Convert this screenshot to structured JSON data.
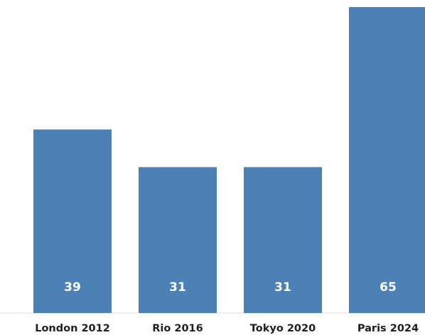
{
  "chart_data": {
    "type": "bar",
    "categories": [
      "London 2012",
      "Rio 2016",
      "Tokyo 2020",
      "Paris 2024"
    ],
    "values": [
      39,
      31,
      31,
      65
    ],
    "title": "",
    "xlabel": "",
    "ylabel": "",
    "ylim": [
      0,
      65
    ],
    "grid": false,
    "data_labels": true,
    "colors": {
      "bar": "#4d81b5",
      "label": "#ffffff",
      "tick_text": "#1f1f1f",
      "axis": "#dddddd"
    }
  }
}
